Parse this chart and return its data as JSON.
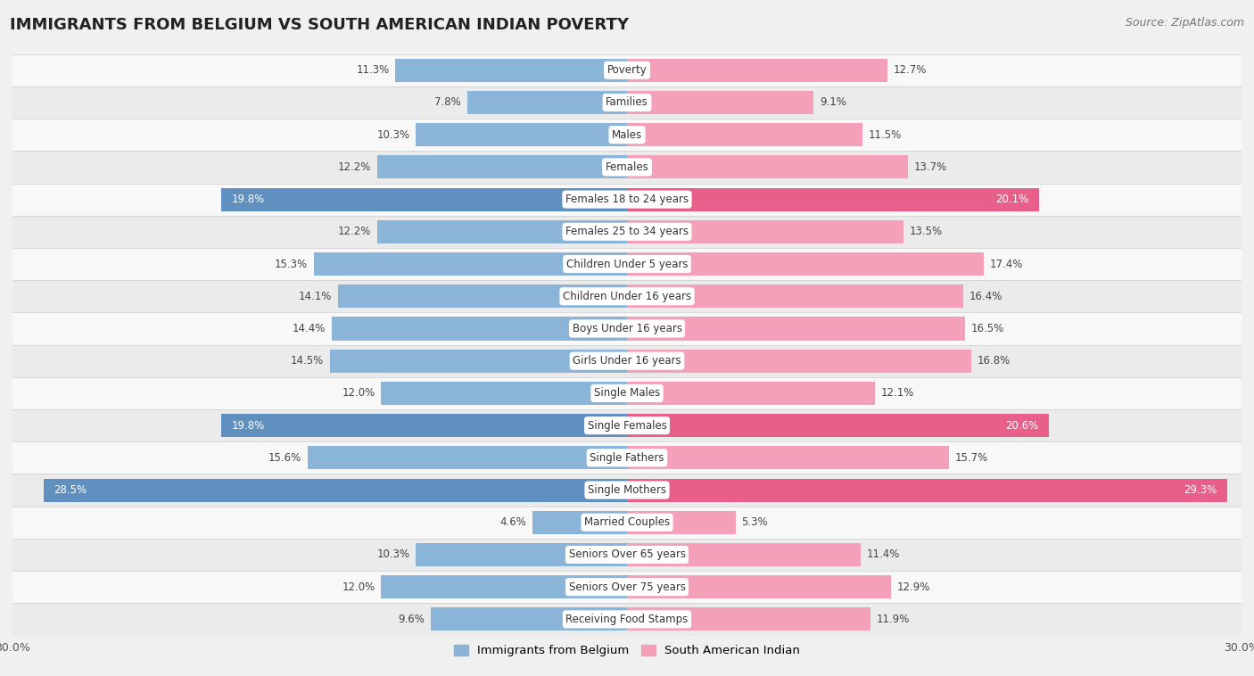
{
  "title": "IMMIGRANTS FROM BELGIUM VS SOUTH AMERICAN INDIAN POVERTY",
  "source": "Source: ZipAtlas.com",
  "categories": [
    "Poverty",
    "Families",
    "Males",
    "Females",
    "Females 18 to 24 years",
    "Females 25 to 34 years",
    "Children Under 5 years",
    "Children Under 16 years",
    "Boys Under 16 years",
    "Girls Under 16 years",
    "Single Males",
    "Single Females",
    "Single Fathers",
    "Single Mothers",
    "Married Couples",
    "Seniors Over 65 years",
    "Seniors Over 75 years",
    "Receiving Food Stamps"
  ],
  "belgium_values": [
    11.3,
    7.8,
    10.3,
    12.2,
    19.8,
    12.2,
    15.3,
    14.1,
    14.4,
    14.5,
    12.0,
    19.8,
    15.6,
    28.5,
    4.6,
    10.3,
    12.0,
    9.6
  ],
  "south_american_values": [
    12.7,
    9.1,
    11.5,
    13.7,
    20.1,
    13.5,
    17.4,
    16.4,
    16.5,
    16.8,
    12.1,
    20.6,
    15.7,
    29.3,
    5.3,
    11.4,
    12.9,
    11.9
  ],
  "belgium_color": "#8ab4d8",
  "south_american_color": "#f4a0b8",
  "belgium_highlight_color": "#6090c0",
  "south_american_highlight_color": "#e8608a",
  "highlight_indices": [
    4,
    11,
    13
  ],
  "bar_height": 0.72,
  "xlim": 30,
  "background_color": "#f0f0f0",
  "row_colors": [
    "#f8f8f8",
    "#ebebeb"
  ],
  "label_bg_color": "#ffffff",
  "legend_label_belgium": "Immigrants from Belgium",
  "legend_label_south_american": "South American Indian",
  "title_fontsize": 13,
  "source_fontsize": 9,
  "value_fontsize": 8.5,
  "category_fontsize": 8.5
}
